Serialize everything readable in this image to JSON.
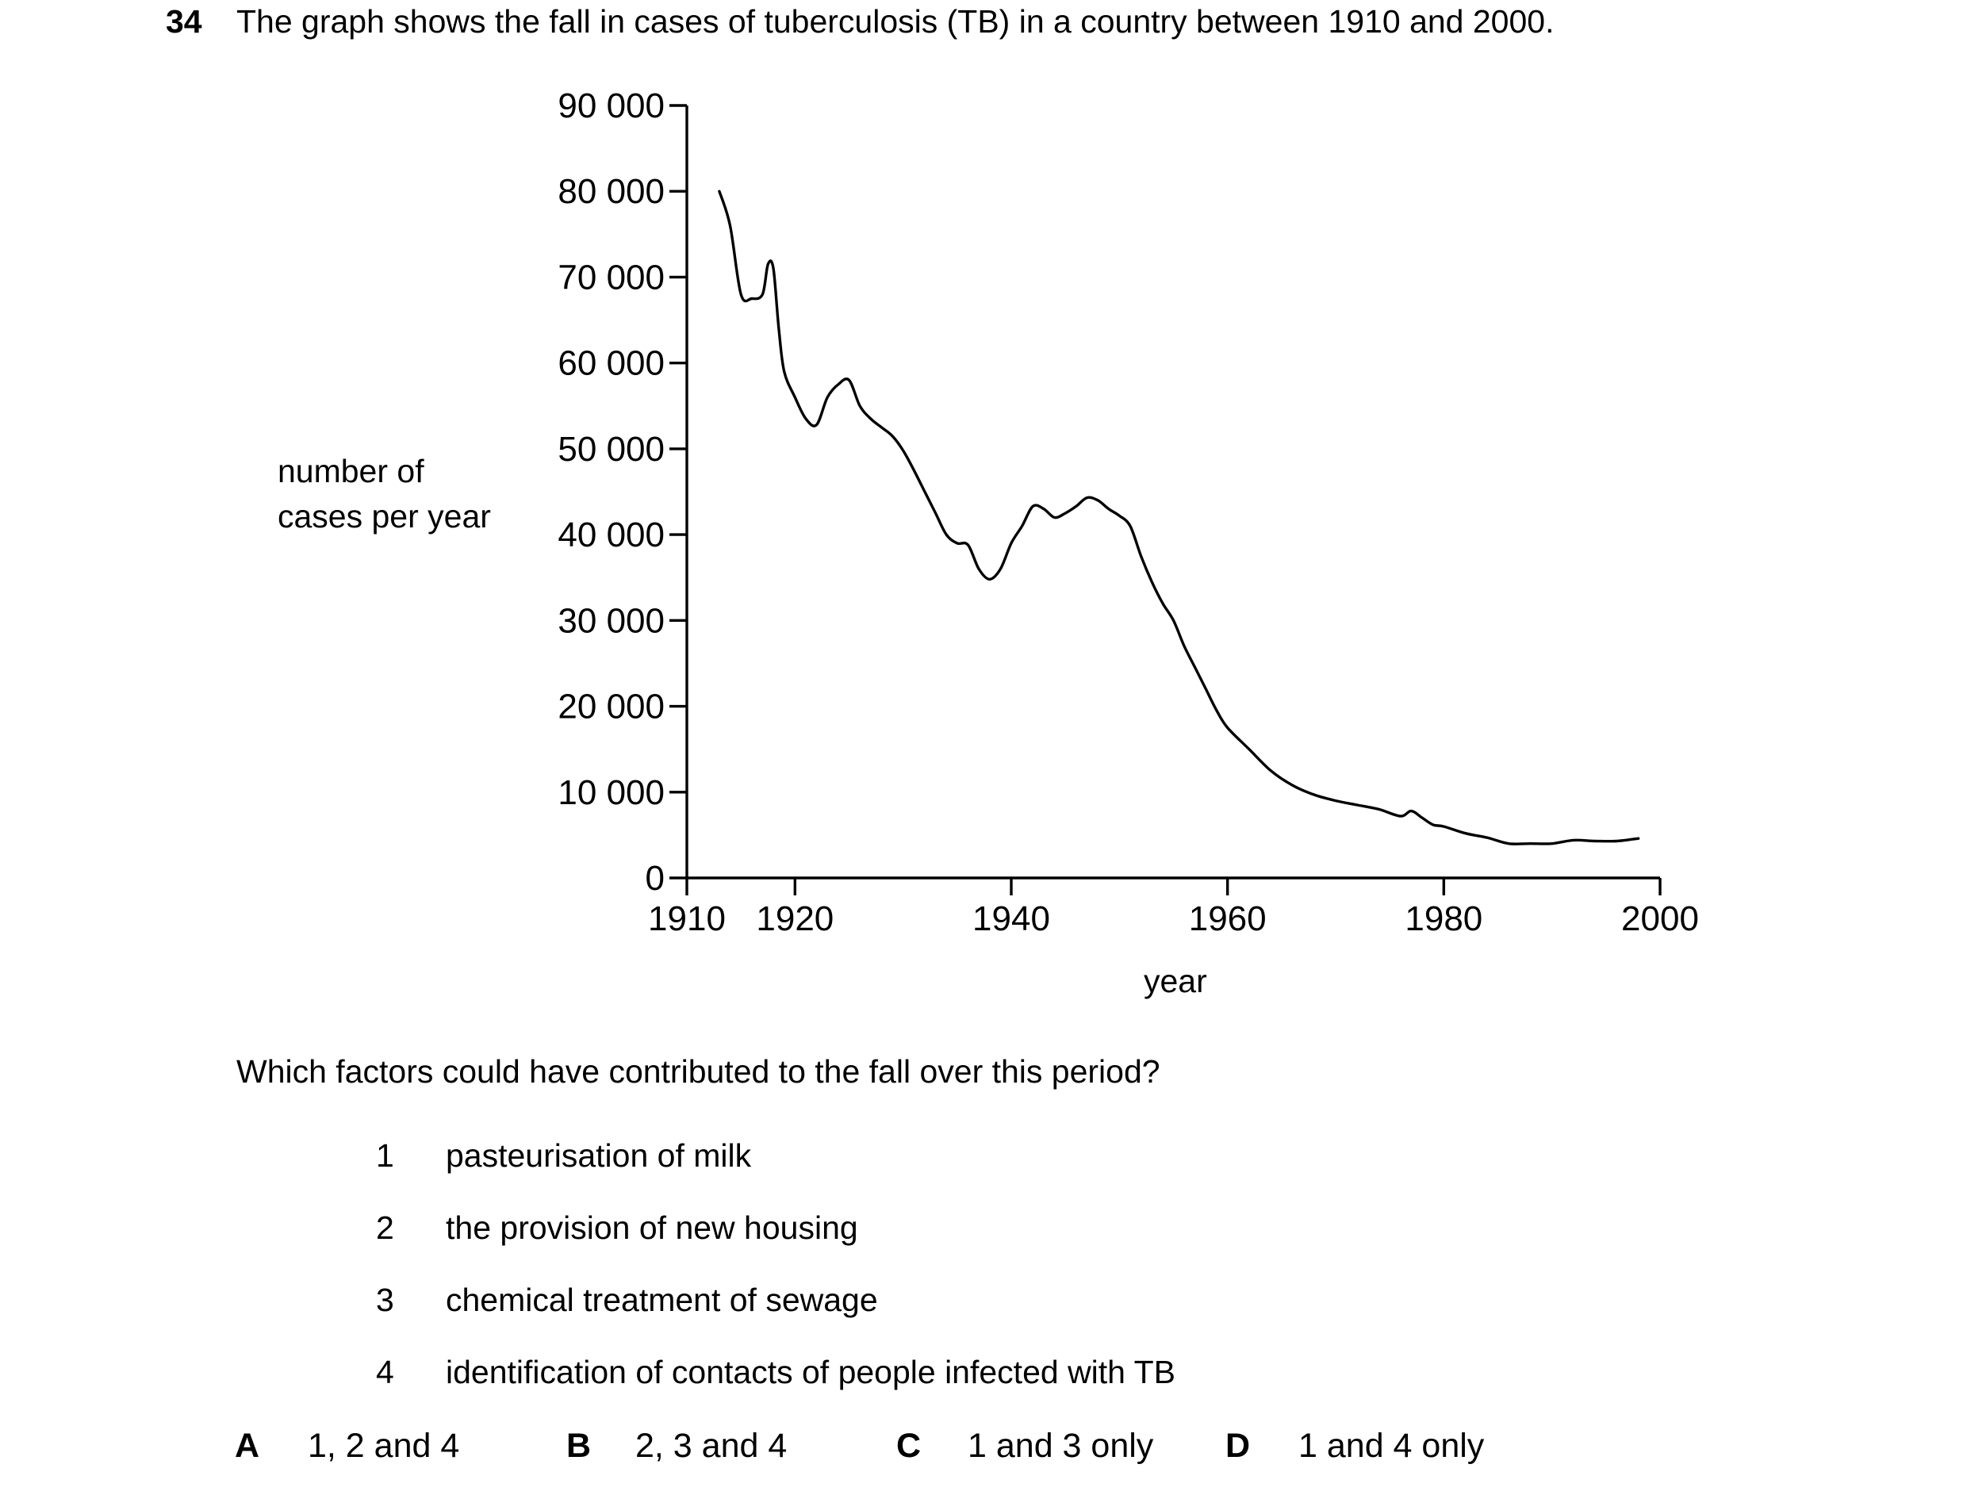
{
  "question": {
    "number": "34",
    "stem": "The graph shows the fall in cases of tuberculosis (TB) in a country between 1910 and 2000.",
    "prompt": "Which factors could have contributed to the fall over this period?",
    "options": [
      {
        "num": "1",
        "text": "pasteurisation of milk"
      },
      {
        "num": "2",
        "text": "the provision of new housing"
      },
      {
        "num": "3",
        "text": "chemical treatment of sewage"
      },
      {
        "num": "4",
        "text": "identification of contacts of people infected with TB"
      }
    ],
    "answers": [
      {
        "letter": "A",
        "text": "1, 2 and 4"
      },
      {
        "letter": "B",
        "text": "2, 3 and 4"
      },
      {
        "letter": "C",
        "text": "1 and 3 only"
      },
      {
        "letter": "D",
        "text": "1 and 4 only"
      }
    ]
  },
  "chart_data": {
    "type": "line",
    "title": "",
    "xlabel": "year",
    "ylabel_lines": [
      "number of",
      "cases per year"
    ],
    "xlim": [
      1910,
      2000
    ],
    "ylim": [
      0,
      90000
    ],
    "x_ticks": [
      1910,
      1920,
      1940,
      1960,
      1980,
      2000
    ],
    "x_tick_labels": [
      "1910",
      "1920",
      "1940",
      "1960",
      "1980",
      "2000"
    ],
    "y_ticks": [
      0,
      10000,
      20000,
      30000,
      40000,
      50000,
      60000,
      70000,
      80000,
      90000
    ],
    "y_tick_labels": [
      "0",
      "10 000",
      "20 000",
      "30 000",
      "40 000",
      "50 000",
      "60 000",
      "70 000",
      "80 000",
      "90 000"
    ],
    "grid": false,
    "series": [
      {
        "x": [
          1913,
          1914,
          1915,
          1916,
          1917,
          1917.5,
          1918,
          1918.5,
          1919,
          1920,
          1921,
          1922,
          1923,
          1924,
          1925,
          1926,
          1927,
          1928,
          1929,
          1930,
          1931,
          1932,
          1933,
          1934,
          1935,
          1936,
          1937,
          1938,
          1939,
          1940,
          1941,
          1942,
          1943,
          1944,
          1945,
          1946,
          1947,
          1948,
          1949,
          1950,
          1951,
          1952,
          1953,
          1954,
          1955,
          1956,
          1957,
          1958,
          1959,
          1960,
          1962,
          1964,
          1966,
          1968,
          1970,
          1972,
          1974,
          1976,
          1977,
          1978,
          1979,
          1980,
          1982,
          1984,
          1986,
          1988,
          1990,
          1992,
          1994,
          1996,
          1998
        ],
        "y": [
          80000,
          76000,
          68000,
          67500,
          68000,
          71500,
          71000,
          64000,
          59000,
          56000,
          53500,
          52800,
          56000,
          57500,
          58000,
          55000,
          53500,
          52500,
          51500,
          49800,
          47500,
          45000,
          42500,
          40000,
          39000,
          38800,
          36000,
          34800,
          36000,
          39000,
          41000,
          43300,
          43000,
          42000,
          42500,
          43300,
          44300,
          44000,
          43000,
          42200,
          41000,
          37500,
          34500,
          32000,
          30000,
          27000,
          24500,
          22000,
          19500,
          17500,
          15000,
          12500,
          10800,
          9700,
          9000,
          8500,
          8000,
          7200,
          7800,
          7000,
          6200,
          6000,
          5200,
          4700,
          4000,
          4000,
          4000,
          4400,
          4300,
          4300,
          4600
        ]
      }
    ]
  }
}
